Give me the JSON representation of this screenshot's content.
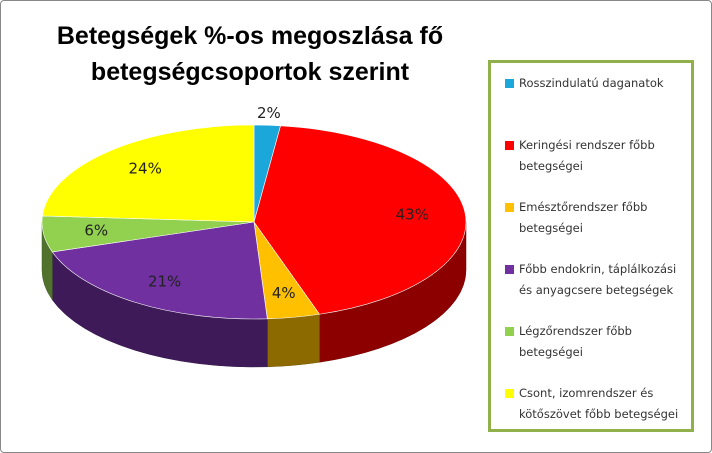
{
  "chart_data": {
    "type": "pie",
    "title": "Betegségek %-os megoszlása fő betegségcsoportok szerint",
    "categories": [
      "Rosszindulatú daganatok",
      "Keringési rendszer főbb betegségei",
      "Emésztőrendszer főbb betegségei",
      "Főbb endokrin, táplálkozási és anyagcsere betegségek",
      "Légzőrendszer főbb betegségei",
      "Csont, izomrendszer és kötőszövet főbb betegségei"
    ],
    "values": [
      2,
      43,
      4,
      21,
      6,
      24
    ],
    "value_labels": [
      "2%",
      "43%",
      "4%",
      "21%",
      "6%",
      "24%"
    ],
    "colors": [
      "#1ba7d9",
      "#ff0000",
      "#ffc000",
      "#7030a0",
      "#92d050",
      "#ffff00"
    ],
    "legend": "right"
  }
}
